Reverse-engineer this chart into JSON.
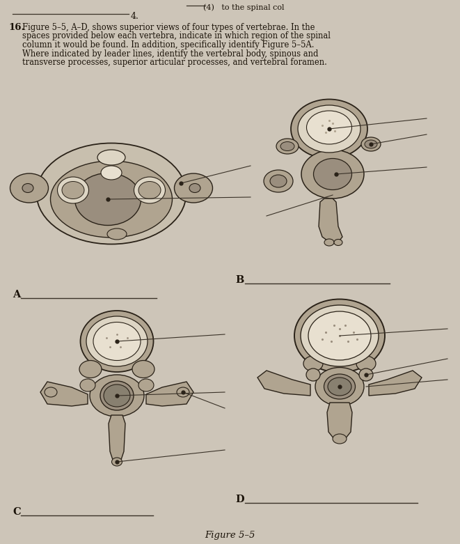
{
  "bg_color": "#cdc5b8",
  "paper_color": "#d4ccbf",
  "ink_color": "#2a2218",
  "line_color": "#3a3228",
  "text_color": "#1a1208",
  "bone_fill": "#c8bfae",
  "bone_dark": "#9a8e7e",
  "bone_medium": "#b0a490",
  "bone_light": "#ddd5c4",
  "bone_white": "#e8e0d0",
  "top_header_text": "(4)   to the spinal col",
  "line4_text": "4.",
  "q16_bold": "16.",
  "q16_text": "Figure 5–5, A–D, shows superior views of four types of vertebrae. In the\nspaces provided below each vertebra, indicate in which region of the spinal\ncolumn it would be found. In addition, specifically identify Figure 5–5A.\nWhere indicated by leader lines, identify the vertebral body, spinous and\ntransverse processes, superior articular processes, and vertebral foramen.",
  "label_A": "A",
  "label_B": "B",
  "label_C": "C",
  "label_D": "D",
  "fig_caption": "Figure 5–5"
}
